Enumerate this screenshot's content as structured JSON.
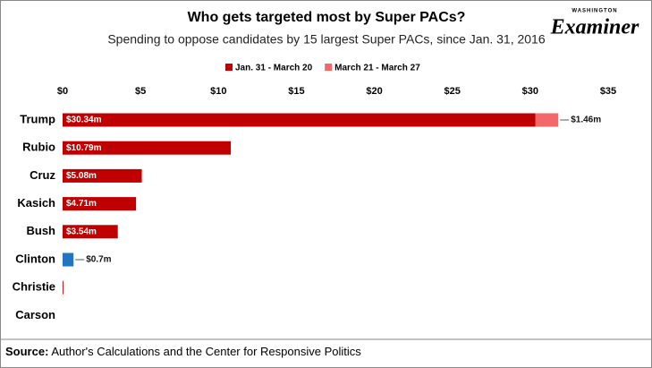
{
  "chart_data": {
    "type": "stacked_bar_horizontal",
    "title": "Who gets targeted most by Super PACs?",
    "subtitle": "Spending to oppose candidates by 15 largest Super PACs, since Jan. 31, 2016",
    "categories": [
      "Trump",
      "Rubio",
      "Cruz",
      "Kasich",
      "Bush",
      "Clinton",
      "Christie",
      "Carson"
    ],
    "series": [
      {
        "name": "Jan. 31 - March 20",
        "color": "#c00000",
        "point_colors": [
          "#c00000",
          "#c00000",
          "#c00000",
          "#c00000",
          "#c00000",
          "#1f77c4",
          "#c00000",
          "#c00000"
        ],
        "values": [
          30.34,
          10.79,
          5.08,
          4.71,
          3.54,
          0.7,
          0.05,
          0
        ],
        "value_labels": [
          "$30.34m",
          "$10.79m",
          "$5.08m",
          "$4.71m",
          "$3.54m",
          "$0.7m",
          null,
          null
        ]
      },
      {
        "name": "March 21 - March 27",
        "color": "#f4676a",
        "values": [
          1.46,
          0,
          0,
          0,
          0,
          0,
          0,
          0
        ],
        "value_labels": [
          "$1.46m",
          null,
          null,
          null,
          null,
          null,
          null,
          null
        ]
      }
    ],
    "xlim": [
      0,
      35
    ],
    "xticks": [
      {
        "value": 0,
        "label": "$0"
      },
      {
        "value": 5,
        "label": "$5"
      },
      {
        "value": 10,
        "label": "$10"
      },
      {
        "value": 15,
        "label": "$15"
      },
      {
        "value": 20,
        "label": "$20"
      },
      {
        "value": 25,
        "label": "$25"
      },
      {
        "value": 30,
        "label": "$30"
      },
      {
        "value": 35,
        "label": "$35"
      }
    ],
    "source_label": "Source:",
    "source": "Author's Calculations and the Center for Responsive Politics",
    "logo": {
      "small": "WASHINGTON",
      "name": "Examiner"
    }
  }
}
